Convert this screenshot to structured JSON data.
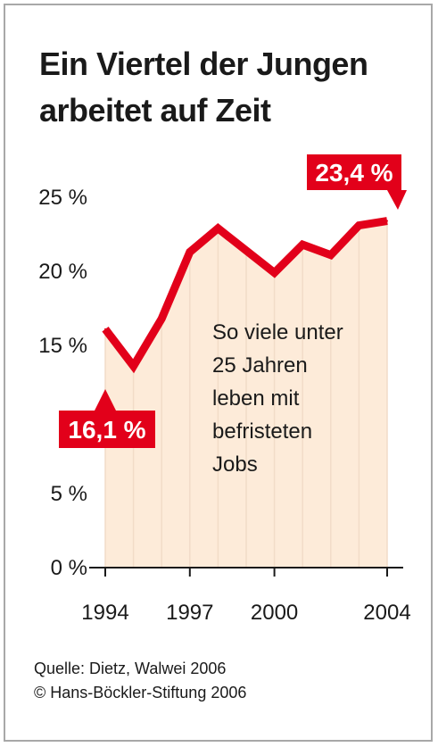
{
  "title_lines": [
    "Ein Viertel der Jungen",
    "arbeitet auf Zeit"
  ],
  "annotation_lines": [
    "So viele unter",
    "25 Jahren",
    "leben mit",
    "befristeten",
    "Jobs"
  ],
  "source_lines": [
    "Quelle: Dietz, Walwei 2006",
    "© Hans-Böckler-Stiftung 2006"
  ],
  "colors": {
    "line": "#e2001a",
    "area": "#fdebd9",
    "grid": "#f2dcc8",
    "callout": "#e2001a",
    "text": "#1a1a1a",
    "frame": "#a8a8a8"
  },
  "chart_data": {
    "type": "area",
    "x": [
      1994,
      1995,
      1996,
      1997,
      1998,
      1999,
      2000,
      2001,
      2002,
      2003,
      2004
    ],
    "values": [
      16.1,
      13.6,
      16.8,
      21.3,
      22.9,
      21.4,
      19.9,
      21.8,
      21.1,
      23.1,
      23.4
    ],
    "ylim": [
      0,
      27
    ],
    "yticks": [
      0,
      5,
      15,
      20,
      25
    ],
    "ytick_labels": [
      "0 %",
      "5 %",
      "15 %",
      "20 %",
      "25 %"
    ],
    "xticks": [
      1994,
      1997,
      2000,
      2004
    ],
    "xtick_labels": [
      "1994",
      "1997",
      "2000",
      "2004"
    ],
    "callouts": [
      {
        "x": 1994,
        "value": 16.1,
        "label": "16,1 %"
      },
      {
        "x": 2004,
        "value": 23.4,
        "label": "23,4 %"
      }
    ],
    "grid": "vertical"
  }
}
